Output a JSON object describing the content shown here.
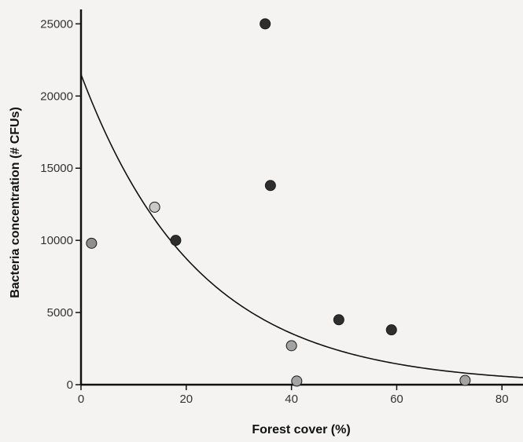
{
  "chart_data": {
    "type": "scatter",
    "title": "",
    "xlabel": "Forest cover (%)",
    "ylabel": "Bacteria concentration (# CFUs)",
    "xlim": [
      0,
      84
    ],
    "ylim": [
      0,
      26000
    ],
    "x_ticks": [
      0,
      20,
      40,
      60,
      80
    ],
    "x_tick_labels": [
      "0",
      "20",
      "40",
      "60",
      "80"
    ],
    "y_ticks": [
      0,
      5000,
      10000,
      15000,
      20000,
      25000
    ],
    "y_tick_labels": [
      "0",
      "5000",
      "10000",
      "15000",
      "20000",
      "25000"
    ],
    "grid": false,
    "points": [
      {
        "x": 2,
        "y": 9800,
        "color": "#8f8f8f"
      },
      {
        "x": 14,
        "y": 12300,
        "color": "#c9c9c9"
      },
      {
        "x": 18,
        "y": 10000,
        "color": "#2e2e2e"
      },
      {
        "x": 35,
        "y": 25000,
        "color": "#2e2e2e"
      },
      {
        "x": 36,
        "y": 13800,
        "color": "#2e2e2e"
      },
      {
        "x": 40,
        "y": 2700,
        "color": "#a3a3a3"
      },
      {
        "x": 41,
        "y": 250,
        "color": "#a3a3a3"
      },
      {
        "x": 49,
        "y": 4500,
        "color": "#2e2e2e"
      },
      {
        "x": 59,
        "y": 3800,
        "color": "#2e2e2e"
      },
      {
        "x": 73,
        "y": 300,
        "color": "#a3a3a3"
      }
    ],
    "fit_curve": {
      "type": "exponential",
      "a": 21500,
      "b": -0.045,
      "x_range": [
        0,
        84
      ],
      "color": "#111111"
    }
  }
}
